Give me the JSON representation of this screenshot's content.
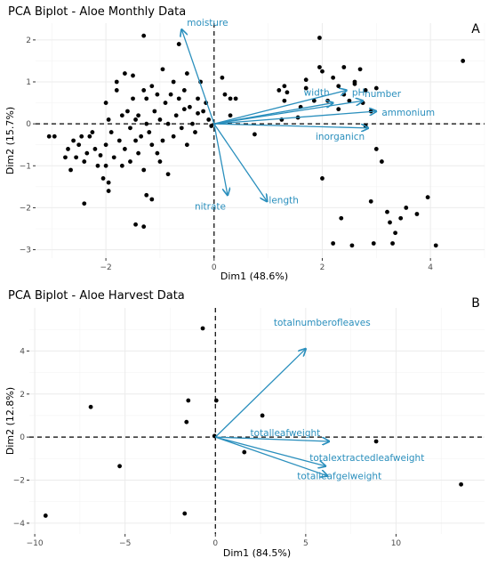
{
  "figure": {
    "panels": [
      {
        "panel_label": "A",
        "title": "PCA Biplot - Aloe Monthly Data",
        "xlabel": "Dim1 (48.6%)",
        "ylabel": "Dim2 (15.7%)"
      },
      {
        "panel_label": "B",
        "title": "PCA Biplot - Aloe Harvest Data",
        "xlabel": "Dim1 (84.5%)",
        "ylabel": "Dim2 (12.8%)"
      }
    ]
  },
  "colors": {
    "arrow": "#2a8fbd",
    "point": "#000000",
    "panel_bg": "#ffffff",
    "grid": "#ebebeb"
  },
  "chart_data": [
    {
      "type": "scatter",
      "title": "PCA Biplot - Aloe Monthly Data",
      "xlabel": "Dim1 (48.6%)",
      "ylabel": "Dim2 (15.7%)",
      "xlim": [
        -3.3,
        5.0
      ],
      "ylim": [
        -3.2,
        2.4
      ],
      "xticks": [
        -2,
        0,
        2,
        4
      ],
      "yticks": [
        -3,
        -2,
        -1,
        0,
        1,
        2
      ],
      "grid": true,
      "reference_lines": "dashed lines at x=0 and y=0",
      "points": [
        [
          -3.05,
          -0.3
        ],
        [
          -2.95,
          -0.3
        ],
        [
          -2.75,
          -0.8
        ],
        [
          -2.7,
          -0.6
        ],
        [
          -2.65,
          -1.1
        ],
        [
          -2.6,
          -0.4
        ],
        [
          -2.55,
          -0.8
        ],
        [
          -2.5,
          -0.5
        ],
        [
          -2.45,
          -0.3
        ],
        [
          -2.4,
          -0.9
        ],
        [
          -2.4,
          -1.9
        ],
        [
          -2.35,
          -0.7
        ],
        [
          -2.3,
          -0.3
        ],
        [
          -2.25,
          -0.2
        ],
        [
          -2.2,
          -0.6
        ],
        [
          -2.15,
          -1.0
        ],
        [
          -2.1,
          -0.75
        ],
        [
          -2.05,
          -1.3
        ],
        [
          -2.0,
          -0.5
        ],
        [
          -2.0,
          -1.0
        ],
        [
          -1.95,
          -1.4
        ],
        [
          -1.95,
          -1.6
        ],
        [
          -2.0,
          0.5
        ],
        [
          -1.95,
          0.1
        ],
        [
          -1.9,
          -0.2
        ],
        [
          -1.85,
          -0.8
        ],
        [
          -1.8,
          0.8
        ],
        [
          -1.8,
          1.0
        ],
        [
          -1.75,
          -0.4
        ],
        [
          -1.7,
          0.2
        ],
        [
          -1.7,
          -1.0
        ],
        [
          -1.65,
          1.2
        ],
        [
          -1.65,
          -0.6
        ],
        [
          -1.6,
          0.3
        ],
        [
          -1.55,
          -0.1
        ],
        [
          -1.55,
          -0.9
        ],
        [
          -1.5,
          1.15
        ],
        [
          -1.5,
          0.6
        ],
        [
          -1.45,
          0.1
        ],
        [
          -1.45,
          -0.4
        ],
        [
          -1.4,
          -0.7
        ],
        [
          -1.4,
          0.2
        ],
        [
          -1.35,
          -0.3
        ],
        [
          -1.3,
          0.8
        ],
        [
          -1.3,
          -1.1
        ],
        [
          -1.25,
          0.0
        ],
        [
          -1.25,
          0.6
        ],
        [
          -1.2,
          -0.2
        ],
        [
          -1.15,
          0.9
        ],
        [
          -1.15,
          -0.5
        ],
        [
          -1.1,
          0.3
        ],
        [
          -1.05,
          0.7
        ],
        [
          -1.05,
          -0.7
        ],
        [
          -1.0,
          0.1
        ],
        [
          -0.95,
          1.3
        ],
        [
          -0.95,
          -0.4
        ],
        [
          -0.9,
          0.5
        ],
        [
          -0.85,
          0.0
        ],
        [
          -0.85,
          -1.2
        ],
        [
          -0.8,
          0.7
        ],
        [
          -0.75,
          1.0
        ],
        [
          -0.75,
          -0.3
        ],
        [
          -0.7,
          0.2
        ],
        [
          -0.65,
          0.6
        ],
        [
          -0.65,
          1.9
        ],
        [
          -0.6,
          -0.1
        ],
        [
          -0.55,
          0.8
        ],
        [
          -0.5,
          1.2
        ],
        [
          -0.5,
          -0.5
        ],
        [
          -0.45,
          0.4
        ],
        [
          -0.4,
          0.0
        ],
        [
          -0.35,
          -0.2
        ],
        [
          -0.3,
          0.6
        ],
        [
          -0.25,
          1.0
        ],
        [
          -0.2,
          0.3
        ],
        [
          -0.15,
          0.5
        ],
        [
          -0.1,
          0.1
        ],
        [
          -0.05,
          -0.05
        ],
        [
          -1.45,
          -2.4
        ],
        [
          -1.3,
          -2.45
        ],
        [
          -1.15,
          -1.8
        ],
        [
          -1.3,
          2.1
        ],
        [
          -1.25,
          -1.7
        ],
        [
          -1.0,
          -0.9
        ],
        [
          -0.55,
          0.35
        ],
        [
          -0.3,
          0.25
        ],
        [
          0.15,
          1.1
        ],
        [
          0.2,
          0.7
        ],
        [
          0.3,
          0.6
        ],
        [
          0.3,
          0.2
        ],
        [
          0.4,
          0.6
        ],
        [
          0.75,
          -0.25
        ],
        [
          1.25,
          0.1
        ],
        [
          1.2,
          0.8
        ],
        [
          1.3,
          0.55
        ],
        [
          1.3,
          0.9
        ],
        [
          1.35,
          0.75
        ],
        [
          1.55,
          0.15
        ],
        [
          1.6,
          0.4
        ],
        [
          1.7,
          1.05
        ],
        [
          1.85,
          0.55
        ],
        [
          1.95,
          2.05
        ],
        [
          1.95,
          1.35
        ],
        [
          2.0,
          -1.3
        ],
        [
          2.1,
          0.55
        ],
        [
          2.2,
          1.1
        ],
        [
          2.3,
          0.35
        ],
        [
          2.3,
          0.9
        ],
        [
          2.35,
          -2.25
        ],
        [
          2.4,
          0.7
        ],
        [
          2.4,
          1.35
        ],
        [
          2.5,
          0.55
        ],
        [
          2.6,
          0.95
        ],
        [
          2.6,
          1.0
        ],
        [
          2.7,
          1.3
        ],
        [
          2.75,
          0.5
        ],
        [
          2.8,
          0.8
        ],
        [
          2.8,
          -0.05
        ],
        [
          2.9,
          -1.85
        ],
        [
          2.9,
          0.3
        ],
        [
          2.95,
          -2.85
        ],
        [
          3.0,
          -0.6
        ],
        [
          3.0,
          0.85
        ],
        [
          3.1,
          -0.9
        ],
        [
          3.2,
          -2.1
        ],
        [
          3.25,
          -2.35
        ],
        [
          3.3,
          -2.85
        ],
        [
          3.35,
          -2.6
        ],
        [
          3.45,
          -2.25
        ],
        [
          3.55,
          -2.0
        ],
        [
          3.75,
          -2.15
        ],
        [
          3.95,
          -1.75
        ],
        [
          4.1,
          -2.9
        ],
        [
          4.6,
          1.5
        ],
        [
          2.55,
          -2.9
        ],
        [
          2.2,
          -2.85
        ],
        [
          2.0,
          1.25
        ],
        [
          1.7,
          0.85
        ]
      ],
      "variables": [
        {
          "name": "moisture",
          "x": -0.6,
          "y": 2.25
        },
        {
          "name": "pH",
          "x": 2.45,
          "y": 0.8
        },
        {
          "name": "number",
          "x": 2.75,
          "y": 0.55
        },
        {
          "name": "width",
          "x": 2.2,
          "y": 0.5
        },
        {
          "name": "ammonium",
          "x": 3.0,
          "y": 0.3
        },
        {
          "name": "inorganicn",
          "x": 2.85,
          "y": -0.1
        },
        {
          "name": "nitrate",
          "x": 0.25,
          "y": -1.7
        },
        {
          "name": "length",
          "x": 0.98,
          "y": -1.85
        }
      ]
    },
    {
      "type": "scatter",
      "title": "PCA Biplot - Aloe Harvest Data",
      "xlabel": "Dim1 (84.5%)",
      "ylabel": "Dim2 (12.8%)",
      "xlim": [
        -10.3,
        14.9
      ],
      "ylim": [
        -4.5,
        6.0
      ],
      "xticks": [
        -10,
        -5,
        0,
        5,
        10
      ],
      "yticks": [
        -4,
        -2,
        0,
        2,
        4
      ],
      "grid": true,
      "reference_lines": "dashed lines at x=0 and y=0",
      "points": [
        [
          -9.4,
          -3.65
        ],
        [
          -6.9,
          1.4
        ],
        [
          -5.3,
          -1.35
        ],
        [
          -1.7,
          -3.55
        ],
        [
          -1.6,
          0.7
        ],
        [
          -1.5,
          1.7
        ],
        [
          -0.7,
          5.05
        ],
        [
          -0.05,
          0.05
        ],
        [
          0.05,
          1.7
        ],
        [
          1.6,
          -0.7
        ],
        [
          2.6,
          1.0
        ],
        [
          8.9,
          -0.2
        ],
        [
          13.6,
          -2.2
        ]
      ],
      "variables": [
        {
          "name": "totalnumberofleaves",
          "x": 5.0,
          "y": 4.1
        },
        {
          "name": "totalleafweight",
          "x": 6.3,
          "y": -0.2
        },
        {
          "name": "totalextractedleafweight",
          "x": 6.1,
          "y": -1.35
        },
        {
          "name": "totalleafgelweight",
          "x": 6.2,
          "y": -1.8
        }
      ]
    }
  ]
}
